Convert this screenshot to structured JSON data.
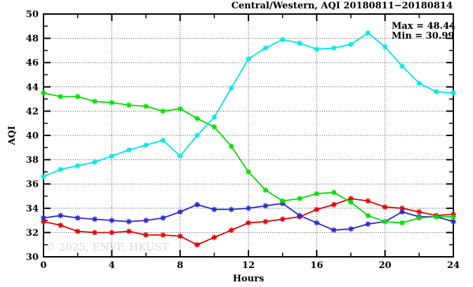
{
  "title": "Central/Western, AQI 20180811−20180814",
  "annotation": {
    "max_label": "Max = 48.44",
    "min_label": "Min = 30.99"
  },
  "watermark": "© 2025, ENVF, HKUST",
  "axes": {
    "xlabel": "Hours",
    "ylabel": "AQI"
  },
  "colors": {
    "red": "#e00000",
    "blue": "#2828cc",
    "green": "#00dd00",
    "cyan": "#00e6e6",
    "grid": "#3a3a3a",
    "axis": "#000000"
  },
  "chart_data": {
    "type": "line",
    "title": "Central/Western, AQI 20180811−20180814",
    "xlabel": "Hours",
    "ylabel": "AQI",
    "xlim": [
      0,
      24
    ],
    "ylim": [
      30,
      50
    ],
    "x_major_ticks": [
      0,
      4,
      8,
      12,
      16,
      20,
      24
    ],
    "x_minor_ticks": [
      2,
      6,
      10,
      14,
      18,
      22
    ],
    "y_major_ticks": [
      30,
      32,
      34,
      36,
      38,
      40,
      42,
      44,
      46,
      48,
      50
    ],
    "y_minor_ticks": [
      31,
      33,
      35,
      37,
      39,
      41,
      43,
      45,
      47,
      49
    ],
    "grid": true,
    "legend": "none",
    "annotations": {
      "max": 48.44,
      "min": 30.99
    },
    "x": [
      0,
      1,
      2,
      3,
      4,
      5,
      6,
      7,
      8,
      9,
      10,
      11,
      12,
      13,
      14,
      15,
      16,
      17,
      18,
      19,
      20,
      21,
      22,
      23,
      24
    ],
    "series": [
      {
        "name": "red",
        "color": "#e00000",
        "values": [
          32.9,
          32.6,
          32.1,
          32.0,
          32.0,
          32.1,
          31.8,
          31.8,
          31.7,
          30.99,
          31.6,
          32.2,
          32.8,
          32.9,
          33.1,
          33.3,
          33.9,
          34.3,
          34.8,
          34.6,
          34.1,
          34.0,
          33.7,
          33.4,
          33.5
        ]
      },
      {
        "name": "blue",
        "color": "#2828cc",
        "values": [
          33.2,
          33.4,
          33.2,
          33.1,
          33.0,
          32.9,
          33.0,
          33.2,
          33.7,
          34.3,
          33.9,
          33.9,
          34.0,
          34.2,
          34.4,
          33.4,
          32.8,
          32.2,
          32.3,
          32.7,
          32.9,
          33.7,
          33.3,
          33.3,
          32.9
        ]
      },
      {
        "name": "green",
        "color": "#00dd00",
        "values": [
          43.5,
          43.2,
          43.2,
          42.8,
          42.7,
          42.5,
          42.4,
          42.0,
          42.2,
          41.4,
          40.7,
          39.1,
          37.0,
          35.5,
          34.6,
          34.8,
          35.2,
          35.3,
          34.5,
          33.4,
          32.9,
          32.8,
          33.2,
          33.3,
          33.3
        ]
      },
      {
        "name": "cyan",
        "color": "#00e6e6",
        "values": [
          36.6,
          37.2,
          37.5,
          37.8,
          38.3,
          38.8,
          39.2,
          39.6,
          38.3,
          40.0,
          41.5,
          43.9,
          46.3,
          47.2,
          47.9,
          47.6,
          47.1,
          47.2,
          47.5,
          48.44,
          47.3,
          45.7,
          44.3,
          43.6,
          43.5
        ]
      }
    ]
  }
}
